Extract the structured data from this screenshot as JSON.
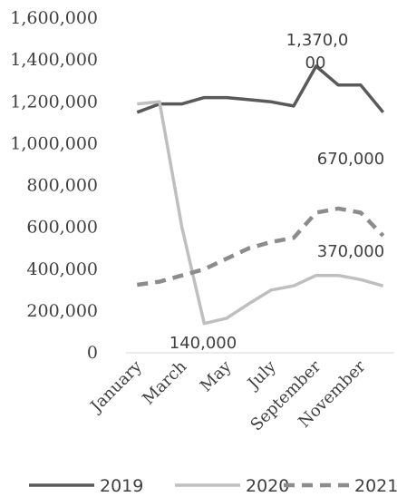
{
  "chart_data": {
    "type": "line",
    "title": "",
    "xlabel": "",
    "ylabel": "",
    "categories": [
      "January",
      "February",
      "March",
      "April",
      "May",
      "June",
      "July",
      "August",
      "September",
      "October",
      "November",
      "December"
    ],
    "x_tick_labels_shown": [
      "January",
      "March",
      "May",
      "July",
      "September",
      "November"
    ],
    "y_ticks": [
      "0",
      "200,000",
      "400,000",
      "600,000",
      "800,000",
      "1,000,000",
      "1,200,000",
      "1,400,000",
      "1,600,000"
    ],
    "ylim": [
      0,
      1600000
    ],
    "grid": false,
    "legend": "bottom",
    "series": [
      {
        "name": "2019",
        "style": "solid",
        "color": "#595959",
        "values": [
          1150000,
          1190000,
          1190000,
          1220000,
          1220000,
          1210000,
          1200000,
          1180000,
          1370000,
          1280000,
          1280000,
          1150000
        ]
      },
      {
        "name": "2020",
        "style": "solid",
        "color": "#bfbfbf",
        "values": [
          1190000,
          1200000,
          600000,
          140000,
          165000,
          235000,
          300000,
          320000,
          370000,
          370000,
          350000,
          320000
        ]
      },
      {
        "name": "2021",
        "style": "dashed",
        "color": "#8c8c8c",
        "values": [
          325000,
          340000,
          370000,
          400000,
          450000,
          500000,
          530000,
          550000,
          670000,
          690000,
          670000,
          560000
        ]
      }
    ],
    "annotations": [
      {
        "line1": "1,370,0",
        "line2": "00"
      },
      {
        "line1": "670,000"
      },
      {
        "line1": "370,000"
      },
      {
        "line1": "140,000"
      }
    ]
  }
}
